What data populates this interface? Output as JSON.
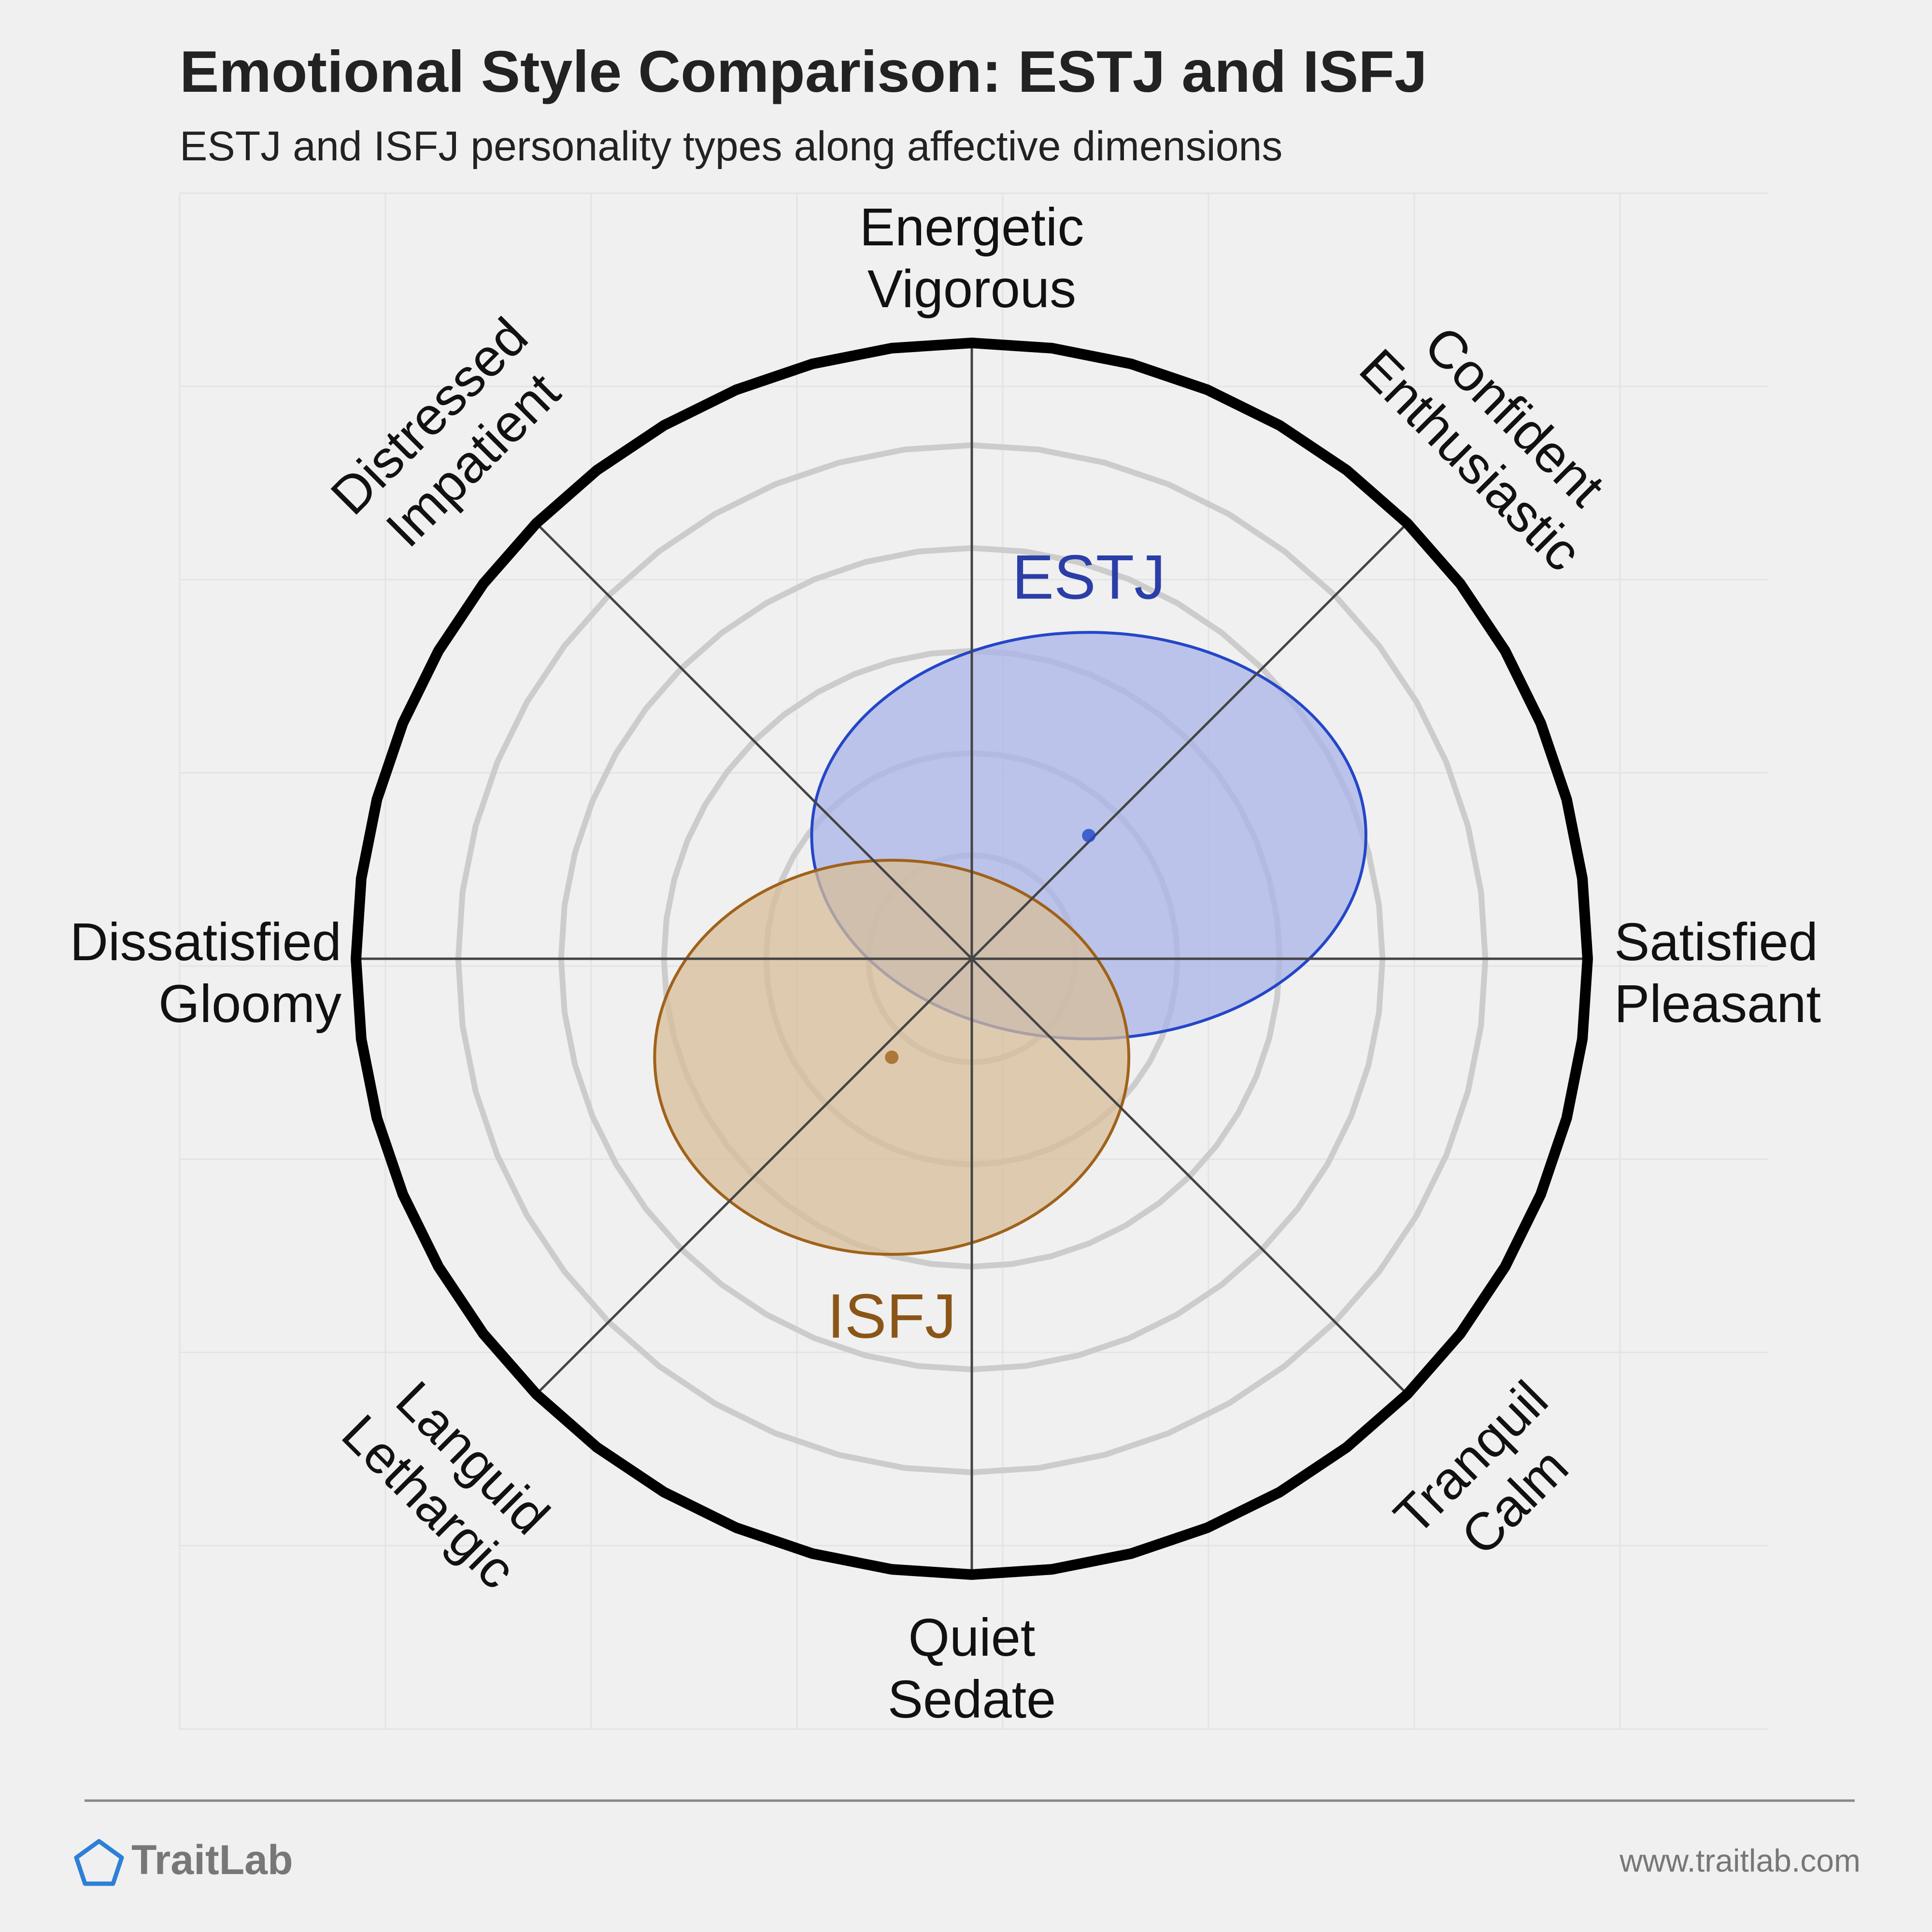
{
  "header": {
    "title": "Emotional Style Comparison: ESTJ and ISFJ",
    "subtitle": "ESTJ and ISFJ personality types along affective dimensions"
  },
  "footer": {
    "brand": "TraitLab",
    "url": "www.traitlab.com"
  },
  "colors": {
    "background": "#f0f0f0",
    "gridline": "#e3e3e3",
    "ring": "#cccccc",
    "axis": "#444444",
    "outer_ring": "#000000",
    "estj_fill": "#aab4e8",
    "estj_stroke": "#2446c8",
    "estj_text": "#2b3ea8",
    "isfj_fill": "#d8bd9a",
    "isfj_stroke": "#a0621a",
    "isfj_text": "#8b5518"
  },
  "chart_data": {
    "type": "scatter",
    "title": "Emotional Style Comparison: ESTJ and ISFJ",
    "subtitle": "ESTJ and ISFJ personality types along affective dimensions",
    "axes": [
      {
        "name": "satisfied-pleasant",
        "label": [
          "Satisfied",
          "Pleasant"
        ],
        "angle_deg": 0
      },
      {
        "name": "confident-enthusiastic",
        "label": [
          "Confident",
          "Enthusiastic"
        ],
        "angle_deg": 45
      },
      {
        "name": "energetic-vigorous",
        "label": [
          "Energetic",
          "Vigorous"
        ],
        "angle_deg": 90
      },
      {
        "name": "distressed-impatient",
        "label": [
          "Distressed",
          "Impatient"
        ],
        "angle_deg": 135
      },
      {
        "name": "dissatisfied-gloomy",
        "label": [
          "Dissatisfied",
          "Gloomy"
        ],
        "angle_deg": 180
      },
      {
        "name": "languid-lethargic",
        "label": [
          "Languid",
          "Lethargic"
        ],
        "angle_deg": 225
      },
      {
        "name": "quiet-sedate",
        "label": [
          "Quiet",
          "Sedate"
        ],
        "angle_deg": 270
      },
      {
        "name": "tranquil-calm",
        "label": [
          "Tranquil",
          "Calm"
        ],
        "angle_deg": 315
      }
    ],
    "x_range": [
      -1,
      1
    ],
    "y_range": [
      -1,
      1
    ],
    "series": [
      {
        "name": "ESTJ",
        "x": 0.19,
        "y": 0.2,
        "spread_x": 0.45,
        "spread_y": 0.33,
        "label_offset": [
          0.19,
          0.62
        ]
      },
      {
        "name": "ISFJ",
        "x": -0.13,
        "y": -0.16,
        "spread_x": 0.385,
        "spread_y": 0.32,
        "label_offset": [
          -0.13,
          -0.58
        ]
      }
    ],
    "grid": true
  }
}
